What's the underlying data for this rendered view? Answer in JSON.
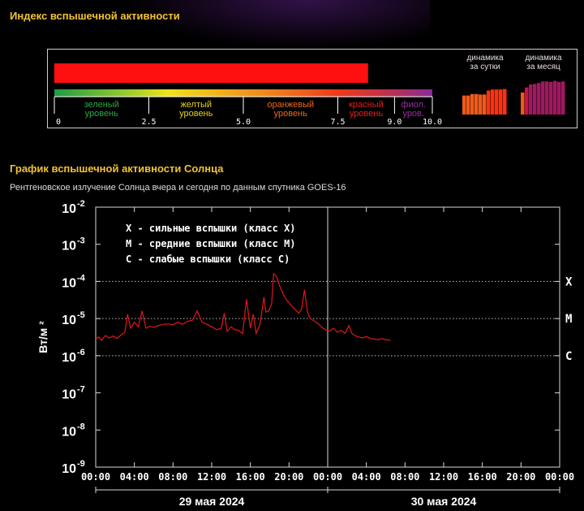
{
  "header": {
    "index_title": "Индекс вспышечной активности",
    "chart_title": "График вспышечной активности Солнца",
    "subtitle": "Рентгеновское излучение Солнца вчера и сегодня по данным спутника GOES-16"
  },
  "index_panel": {
    "value": 8.3,
    "scale_max": 10.0,
    "tick_labels": [
      "0",
      "2.5",
      "5.0",
      "7.5",
      "9.0",
      "10.0"
    ],
    "levels": [
      {
        "line1": "зеленый",
        "line2": "уровень",
        "from": 0,
        "to": 2.5,
        "color": "#2ea84a"
      },
      {
        "line1": "желтый",
        "line2": "уровень",
        "from": 2.5,
        "to": 5.0,
        "color": "#e6d21a"
      },
      {
        "line1": "оранжевый",
        "line2": "уровень",
        "from": 5.0,
        "to": 7.5,
        "color": "#ee6a1c"
      },
      {
        "line1": "красный",
        "line2": "уровень",
        "from": 7.5,
        "to": 9.0,
        "color": "#e0201e"
      },
      {
        "line1": "фиол.",
        "line2": "уров.",
        "from": 9.0,
        "to": 10.0,
        "color": "#9b2fa0"
      }
    ],
    "bar_color": "#ff1010",
    "daily": {
      "label1": "динамика",
      "label2": "за сутки",
      "values": [
        7.0,
        7.0,
        7.3,
        7.3,
        7.2,
        7.2,
        8.0,
        8.2,
        8.2,
        8.2,
        8.3
      ],
      "colors": [
        "#f05a1a",
        "#f05a1a",
        "#f05a1a",
        "#f05a1a",
        "#f05a1a",
        "#f05a1a",
        "#ff3010",
        "#ff3010",
        "#ff3010",
        "#ff3010",
        "#ff3010"
      ]
    },
    "monthly": {
      "label1": "динамика",
      "label2": "за месяц",
      "values": [
        7.6,
        8.6,
        9.2,
        9.3,
        9.5,
        9.8,
        9.8,
        9.7,
        9.9,
        9.7,
        9.8
      ],
      "colors": [
        "#f05a1a",
        "#c8104a",
        "#a01860",
        "#a01860",
        "#a01860",
        "#a01860",
        "#a01860",
        "#a01860",
        "#a01860",
        "#a01860",
        "#a01860"
      ]
    }
  },
  "chart_data": {
    "type": "line",
    "title": "",
    "ylabel": "Вт/м ²",
    "xlabel": "",
    "y_scale": "log",
    "ylim": [
      1e-09,
      0.01
    ],
    "y_ticks": [
      {
        "base": "10",
        "exp": "-2"
      },
      {
        "base": "10",
        "exp": "-3"
      },
      {
        "base": "10",
        "exp": "-4"
      },
      {
        "base": "10",
        "exp": "-5"
      },
      {
        "base": "10",
        "exp": "-6"
      },
      {
        "base": "10",
        "exp": "-7"
      },
      {
        "base": "10",
        "exp": "-8"
      },
      {
        "base": "10",
        "exp": "-9"
      }
    ],
    "x_ticks": [
      "00:00",
      "04:00",
      "08:00",
      "12:00",
      "16:00",
      "20:00",
      "00:00",
      "04:00",
      "08:00",
      "12:00",
      "16:00",
      "20:00",
      "00:00"
    ],
    "x_range_hours": [
      0,
      48
    ],
    "dates": [
      "29 мая 2024",
      "30 мая 2024"
    ],
    "class_lines": [
      {
        "label": "X",
        "value": 0.0001
      },
      {
        "label": "M",
        "value": 1e-05
      },
      {
        "label": "C",
        "value": 1e-06
      }
    ],
    "legend": [
      "X - сильные вспышки (класс X)",
      "M - средние вспышки (класс M)",
      "C - слабые вспышки (класс C)"
    ],
    "series_color": "#e01818",
    "series": [
      {
        "x": [
          0,
          0.3,
          0.6,
          1,
          1.4,
          1.8,
          2.2,
          2.6,
          3,
          3.3,
          3.6,
          4,
          4.4,
          4.8,
          5.2,
          5.6,
          6,
          6.5,
          7,
          7.5,
          8,
          8.5,
          9,
          9.5,
          10,
          10.5,
          11,
          11.5,
          12,
          12.5,
          13,
          13.3,
          13.6,
          14,
          14.4,
          14.8,
          15.2,
          15.6,
          16,
          16.3,
          16.6,
          17,
          17.4,
          17.6,
          17.9,
          18.2,
          18.4,
          18.6,
          18.8,
          19,
          19.2,
          19.5,
          19.8,
          20.1,
          20.4,
          20.7,
          21,
          21.3,
          21.6,
          21.9,
          22.2,
          22.5,
          22.8,
          23.1,
          23.4,
          23.8,
          24.2,
          24.6,
          25,
          25.4,
          25.8,
          26.2,
          26.5,
          26.8,
          27.2,
          27.6,
          28,
          28.4,
          28.8,
          29.2,
          29.6,
          30,
          30.5
        ],
        "values": [
          2.8e-06,
          3.2e-06,
          2.6e-06,
          3.5e-06,
          3e-06,
          3.4e-06,
          2.9e-06,
          3.6e-06,
          4.2e-06,
          1.3e-05,
          5.5e-06,
          8e-06,
          6e-06,
          1.6e-05,
          5.5e-06,
          6.2e-06,
          5.8e-06,
          6.5e-06,
          7e-06,
          7.2e-06,
          6.8e-06,
          8e-06,
          7e-06,
          8.5e-06,
          9e-06,
          1.6e-05,
          8e-06,
          7e-06,
          6e-06,
          5e-06,
          5.5e-06,
          1.4e-05,
          4.5e-06,
          6e-06,
          5e-06,
          4.8e-06,
          3.9e-06,
          3.3e-05,
          5.5e-06,
          1.3e-05,
          4e-06,
          7e-06,
          3.8e-05,
          1.5e-05,
          1.6e-05,
          2.5e-05,
          0.00016,
          0.00015,
          0.00012,
          8e-05,
          6e-05,
          4e-05,
          3e-05,
          2.5e-05,
          2e-05,
          1.7e-05,
          1.4e-05,
          1.8e-05,
          6e-05,
          1.5e-05,
          1e-05,
          9e-06,
          8e-06,
          7e-06,
          5.8e-06,
          5e-06,
          4.6e-06,
          5.5e-06,
          4.3e-06,
          4.8e-06,
          4e-06,
          6.5e-06,
          4e-06,
          3.5e-06,
          3.2e-06,
          3e-06,
          3.3e-06,
          2.9e-06,
          2.8e-06,
          2.7e-06,
          2.9e-06,
          2.7e-06,
          2.6e-06
        ]
      }
    ]
  }
}
